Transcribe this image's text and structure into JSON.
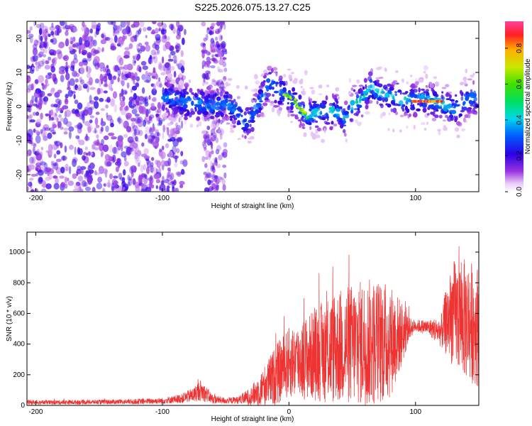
{
  "title": "S225.2026.075.13.27.C25",
  "chart_data": [
    {
      "type": "heatmap",
      "xlabel": "Height of straight line (km)",
      "ylabel": "Frequency (Hz)",
      "xlim": [
        -207,
        150
      ],
      "ylim": [
        -25,
        25
      ],
      "xticks": [
        -200,
        -100,
        0,
        100
      ],
      "yticks": [
        -20,
        -10,
        0,
        10,
        20
      ],
      "colorbar": {
        "label": "Normalized spectral amplitude",
        "range": [
          0.0,
          0.95
        ],
        "ticks": [
          0.0,
          0.2,
          0.4,
          0.6,
          0.8
        ],
        "tick_labels": [
          "0.0",
          "0.2",
          "0.4",
          "0.6",
          "0.8"
        ]
      },
      "ridge": {
        "x": [
          -100,
          -90,
          -80,
          -70,
          -60,
          -50,
          -40,
          -35,
          -30,
          -25,
          -20,
          -15,
          -10,
          -5,
          0,
          5,
          10,
          15,
          20,
          30,
          40,
          45,
          50,
          60,
          65,
          70,
          80,
          90,
          100,
          110,
          120,
          130,
          140,
          150
        ],
        "y": [
          3,
          2,
          1,
          1,
          0,
          1,
          -2,
          -5,
          -3,
          0,
          4,
          7,
          5,
          4,
          3,
          1,
          -1,
          -3,
          -2,
          -1,
          -2,
          -4,
          0,
          3,
          6,
          4,
          3,
          2,
          2,
          2,
          1,
          -1,
          2,
          3
        ]
      },
      "peak_segment": {
        "x_start": 98,
        "x_end": 122,
        "frequency": 1.5,
        "amplitude": 0.9
      }
    },
    {
      "type": "line",
      "xlabel": "Height of straight line (km)",
      "ylabel": "SNR (10 * v/v)",
      "xlim": [
        -207,
        150
      ],
      "ylim": [
        0,
        1130
      ],
      "xticks": [
        -200,
        -100,
        0,
        100
      ],
      "yticks": [
        0,
        200,
        400,
        600,
        800,
        1000
      ],
      "series": [
        {
          "name": "SNR",
          "color": "#ee3333",
          "envelope_x": [
            -207,
            -180,
            -150,
            -120,
            -100,
            -85,
            -75,
            -70,
            -65,
            -60,
            -50,
            -40,
            -30,
            -20,
            -10,
            0,
            10,
            20,
            30,
            40,
            50,
            60,
            70,
            80,
            90,
            95,
            100,
            110,
            120,
            125,
            130,
            140,
            150
          ],
          "envelope_mean": [
            20,
            20,
            22,
            25,
            30,
            45,
            70,
            100,
            70,
            40,
            30,
            35,
            60,
            120,
            200,
            280,
            300,
            330,
            360,
            380,
            400,
            410,
            410,
            420,
            470,
            500,
            520,
            510,
            480,
            560,
            600,
            560,
            520
          ],
          "envelope_spread": [
            15,
            15,
            15,
            18,
            20,
            30,
            50,
            70,
            50,
            30,
            20,
            25,
            60,
            130,
            200,
            230,
            260,
            300,
            350,
            380,
            400,
            420,
            420,
            380,
            200,
            70,
            40,
            50,
            100,
            250,
            350,
            400,
            400
          ]
        }
      ]
    }
  ]
}
